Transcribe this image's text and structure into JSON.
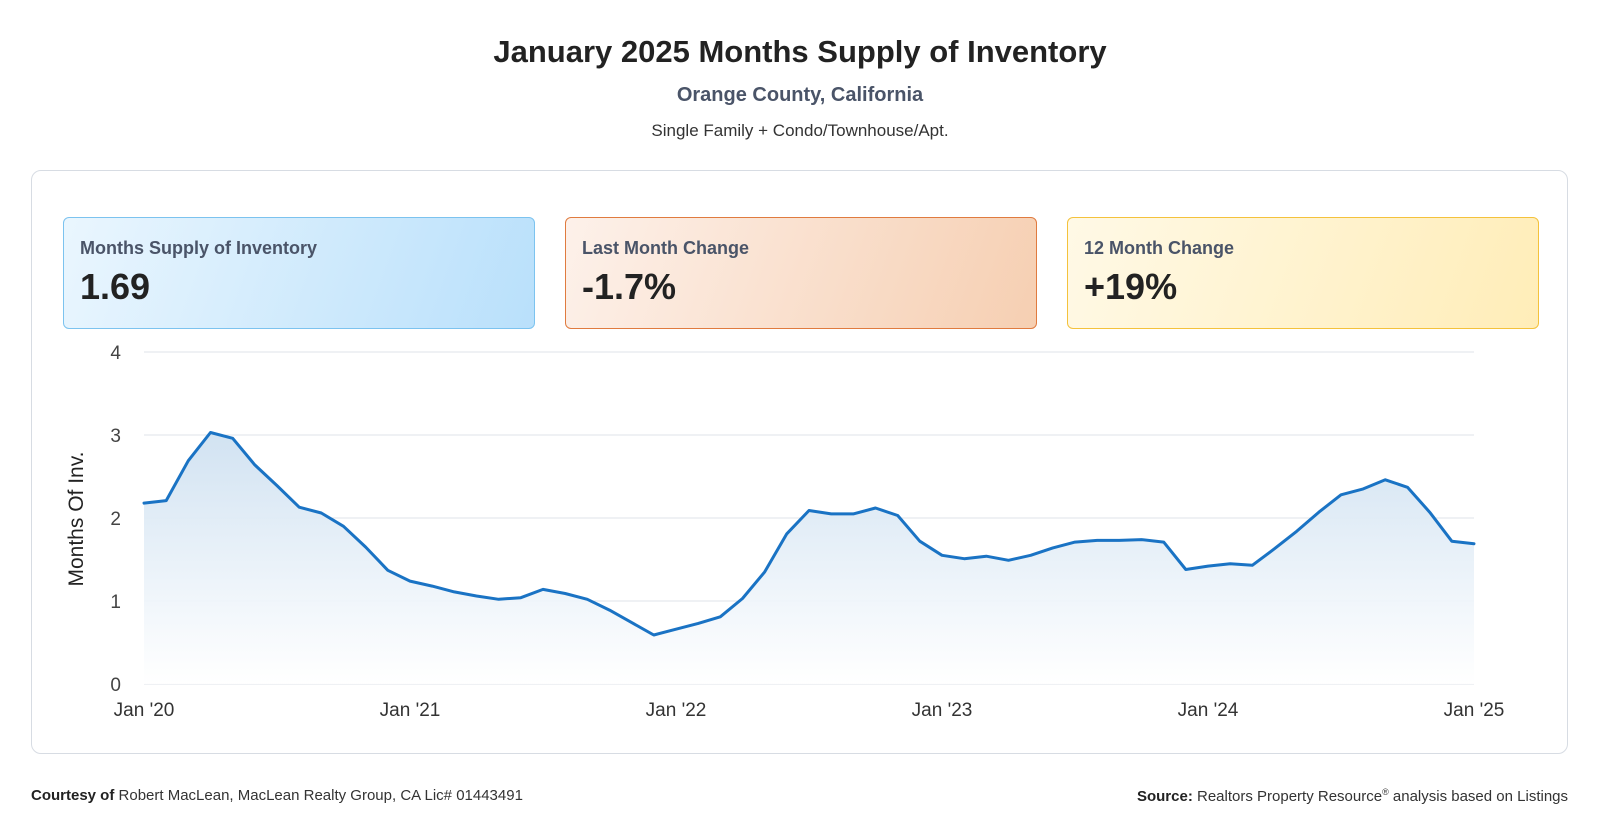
{
  "header": {
    "title": "January 2025 Months Supply of Inventory",
    "subtitle": "Orange County, California",
    "property_types": "Single Family + Condo/Townhouse/Apt."
  },
  "stats": [
    {
      "label": "Months Supply of Inventory",
      "value": "1.69"
    },
    {
      "label": "Last Month Change",
      "value": "-1.7%"
    },
    {
      "label": "12 Month Change",
      "value": "+19%"
    }
  ],
  "colors": {
    "line": "#1a73c4",
    "fill_top": "#cfe1f1",
    "grid": "#dfe3e8"
  },
  "chart_data": {
    "type": "area",
    "ylabel": "Months Of Inv.",
    "ylim": [
      0,
      4
    ],
    "yticks": [
      "0",
      "1",
      "2",
      "3",
      "4"
    ],
    "xticks": [
      "Jan '20",
      "Jan '21",
      "Jan '22",
      "Jan '23",
      "Jan '24",
      "Jan '25"
    ],
    "grid": true,
    "series": [
      {
        "values": [
          2.18,
          2.21,
          2.69,
          3.03,
          2.96,
          2.64,
          2.39,
          2.13,
          2.06,
          1.9,
          1.65,
          1.37,
          1.24,
          1.18,
          1.11,
          1.06,
          1.02,
          1.04,
          1.14,
          1.09,
          1.02,
          0.89,
          0.74,
          0.59,
          0.66,
          0.73,
          0.81,
          1.03,
          1.35,
          1.81,
          2.09,
          2.05,
          2.05,
          2.12,
          2.03,
          1.72,
          1.55,
          1.51,
          1.54,
          1.49,
          1.55,
          1.64,
          1.71,
          1.73,
          1.73,
          1.74,
          1.71,
          1.38,
          1.42,
          1.45,
          1.43,
          1.63,
          1.84,
          2.07,
          2.28,
          2.35,
          2.46,
          2.37,
          2.07,
          1.72,
          1.69
        ]
      }
    ]
  },
  "footer": {
    "courtesy_label": "Courtesy of",
    "courtesy_text": "Robert MacLean, MacLean Realty Group, CA Lic# 01443491",
    "source_label": "Source:",
    "source_text": "Realtors Property Resource",
    "source_mark": "®",
    "source_suffix": "analysis based on Listings"
  }
}
